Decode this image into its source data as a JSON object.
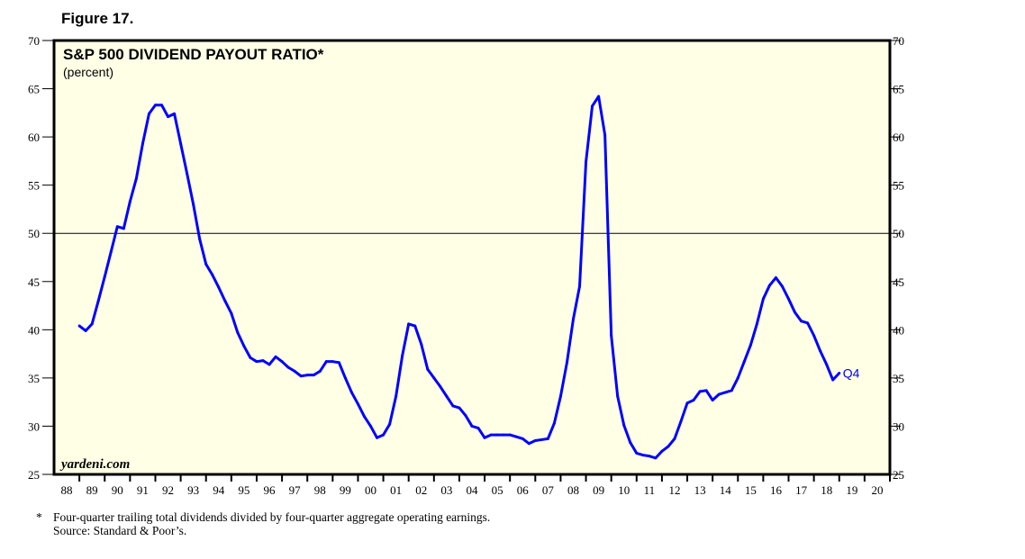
{
  "figure_label": "Figure 17.",
  "chart_data": {
    "type": "line",
    "title": "S&P 500 DIVIDEND PAYOUT RATIO*",
    "subtitle": "(percent)",
    "watermark": "yardeni.com",
    "xlabel": "",
    "ylabel": "",
    "ylim": [
      25,
      70
    ],
    "yticks": [
      25,
      30,
      35,
      40,
      45,
      50,
      55,
      60,
      65,
      70
    ],
    "xlim": [
      1988,
      2021
    ],
    "xtick_labels": [
      "88",
      "89",
      "90",
      "91",
      "92",
      "93",
      "94",
      "95",
      "96",
      "97",
      "98",
      "99",
      "00",
      "01",
      "02",
      "03",
      "04",
      "05",
      "06",
      "07",
      "08",
      "09",
      "10",
      "11",
      "12",
      "13",
      "14",
      "15",
      "16",
      "17",
      "18",
      "19",
      "20"
    ],
    "reference_line": 50,
    "grid": false,
    "line_color": "#0000ff",
    "end_label": "Q4",
    "series": [
      {
        "x": [
          1989,
          1989.25,
          1989.5,
          1989.75,
          1990,
          1990.25,
          1990.5,
          1990.75,
          1991,
          1991.25,
          1991.5,
          1991.75,
          1992,
          1992.25,
          1992.5,
          1992.75,
          1993,
          1993.25,
          1993.5,
          1993.75,
          1994,
          1994.25,
          1994.5,
          1994.75,
          1995,
          1995.25,
          1995.5,
          1995.75,
          1996,
          1996.25,
          1996.5,
          1996.75,
          1997,
          1997.25,
          1997.5,
          1997.75,
          1998,
          1998.25,
          1998.5,
          1998.75,
          1999,
          1999.25,
          1999.5,
          1999.75,
          2000,
          2000.25,
          2000.5,
          2000.75,
          2001,
          2001.25,
          2001.5,
          2001.75,
          2002,
          2002.25,
          2002.5,
          2002.75,
          2003,
          2003.25,
          2003.5,
          2003.75,
          2004,
          2004.25,
          2004.5,
          2004.75,
          2005,
          2005.25,
          2005.5,
          2005.75,
          2006,
          2006.25,
          2006.5,
          2006.75,
          2007,
          2007.25,
          2007.5,
          2007.75,
          2008,
          2008.25,
          2008.5,
          2008.75,
          2009,
          2009.25,
          2009.5,
          2009.75,
          2010,
          2010.25,
          2010.5,
          2010.75,
          2011,
          2011.25,
          2011.5,
          2011.75,
          2012,
          2012.25,
          2012.5,
          2012.75,
          2013,
          2013.25,
          2013.5,
          2013.75,
          2014,
          2014.25,
          2014.5,
          2014.75,
          2015,
          2015.25,
          2015.5,
          2015.75,
          2016,
          2016.25,
          2016.5,
          2016.75,
          2017,
          2017.25,
          2017.5,
          2017.75,
          2018,
          2018.25,
          2018.5,
          2018.75,
          2019
        ],
        "values": [
          40.4,
          39.9,
          40.6,
          43.0,
          45.5,
          48.1,
          50.7,
          50.5,
          53.3,
          55.7,
          59.3,
          62.4,
          63.3,
          63.3,
          62.1,
          62.4,
          59.3,
          56.2,
          53.0,
          49.4,
          46.8,
          45.7,
          44.4,
          43.0,
          41.7,
          39.7,
          38.3,
          37.1,
          36.7,
          36.8,
          36.4,
          37.2,
          36.7,
          36.1,
          35.7,
          35.2,
          35.3,
          35.3,
          35.7,
          36.7,
          36.7,
          36.6,
          35.0,
          33.5,
          32.3,
          31.0,
          30.0,
          28.8,
          29.1,
          30.2,
          33.1,
          37.3,
          40.6,
          40.4,
          38.5,
          35.9,
          35.0,
          34.1,
          33.1,
          32.1,
          31.9,
          31.1,
          30.0,
          29.8,
          28.8,
          29.1,
          29.1,
          29.1,
          29.1,
          28.9,
          28.7,
          28.2,
          28.5,
          28.6,
          28.7,
          30.3,
          33.1,
          36.6,
          41.1,
          44.5,
          57.4,
          63.2,
          64.2,
          60.2,
          39.4,
          33.1,
          30.1,
          28.3,
          27.2,
          27.0,
          26.9,
          26.7,
          27.4,
          27.9,
          28.7,
          30.5,
          32.4,
          32.7,
          33.6,
          33.7,
          32.7,
          33.3,
          33.5,
          33.7,
          35.0,
          36.7,
          38.4,
          40.6,
          43.2,
          44.6,
          45.4,
          44.5,
          43.2,
          41.8,
          40.9,
          40.7,
          39.4,
          37.8,
          36.4,
          34.8,
          35.5
        ]
      }
    ]
  },
  "footnote": {
    "marker": "*",
    "line1": "Four-quarter trailing total dividends divided by four-quarter aggregate operating earnings.",
    "line2": "Source: Standard & Poor’s."
  }
}
